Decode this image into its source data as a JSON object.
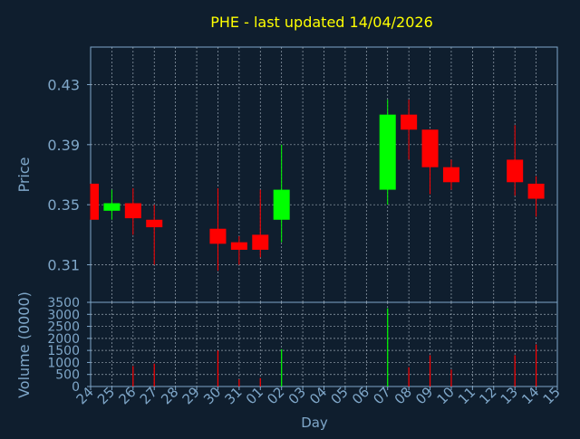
{
  "colors": {
    "background": "#0f1e2e",
    "axis": "#7fa7c9",
    "grid": "#c8d4e0",
    "title": "#ffff00",
    "up": "#00ff00",
    "down": "#ff0000"
  },
  "chart_data": {
    "type": "candlestick",
    "title": "PHE - last updated 14/04/2026",
    "xlabel": "Day",
    "grid": true,
    "categories": [
      "24",
      "25",
      "26",
      "27",
      "28",
      "29",
      "30",
      "31",
      "01",
      "02",
      "03",
      "04",
      "05",
      "06",
      "07",
      "08",
      "09",
      "10",
      "11",
      "12",
      "13",
      "14",
      "15"
    ],
    "price": {
      "ylabel": "Price",
      "ylim": [
        0.285,
        0.455
      ],
      "ticks": [
        "0.31",
        "0.35",
        "0.39",
        "0.43"
      ],
      "tick_values": [
        0.31,
        0.35,
        0.39,
        0.43
      ],
      "candles": [
        {
          "day": "24",
          "open": 0.364,
          "high": 0.364,
          "low": 0.34,
          "close": 0.34
        },
        {
          "day": "25",
          "open": 0.346,
          "high": 0.36,
          "low": 0.34,
          "close": 0.351
        },
        {
          "day": "26",
          "open": 0.351,
          "high": 0.361,
          "low": 0.33,
          "close": 0.341
        },
        {
          "day": "27",
          "open": 0.34,
          "high": 0.35,
          "low": 0.31,
          "close": 0.335
        },
        {
          "day": "30",
          "open": 0.334,
          "high": 0.361,
          "low": 0.306,
          "close": 0.324
        },
        {
          "day": "31",
          "open": 0.325,
          "high": 0.329,
          "low": 0.31,
          "close": 0.32
        },
        {
          "day": "01",
          "open": 0.33,
          "high": 0.36,
          "low": 0.315,
          "close": 0.32
        },
        {
          "day": "02",
          "open": 0.34,
          "high": 0.39,
          "low": 0.325,
          "close": 0.36
        },
        {
          "day": "07",
          "open": 0.36,
          "high": 0.42,
          "low": 0.35,
          "close": 0.41
        },
        {
          "day": "08",
          "open": 0.41,
          "high": 0.42,
          "low": 0.38,
          "close": 0.4
        },
        {
          "day": "09",
          "open": 0.4,
          "high": 0.4,
          "low": 0.357,
          "close": 0.375
        },
        {
          "day": "10",
          "open": 0.375,
          "high": 0.38,
          "low": 0.36,
          "close": 0.365
        },
        {
          "day": "13",
          "open": 0.38,
          "high": 0.403,
          "low": 0.356,
          "close": 0.365
        },
        {
          "day": "14",
          "open": 0.364,
          "high": 0.369,
          "low": 0.342,
          "close": 0.354
        }
      ]
    },
    "volume": {
      "ylabel": "Volume (0000)",
      "ylim": [
        0,
        3500
      ],
      "ticks": [
        "0",
        "500",
        "1000",
        "1500",
        "2000",
        "2500",
        "3000",
        "3500"
      ],
      "tick_values": [
        0,
        500,
        1000,
        1500,
        2000,
        2500,
        3000,
        3500
      ],
      "bars": [
        {
          "day": "24",
          "value": 0,
          "direction": "down"
        },
        {
          "day": "25",
          "value": 0,
          "direction": "up"
        },
        {
          "day": "26",
          "value": 850,
          "direction": "down"
        },
        {
          "day": "27",
          "value": 950,
          "direction": "down"
        },
        {
          "day": "30",
          "value": 1500,
          "direction": "down"
        },
        {
          "day": "31",
          "value": 300,
          "direction": "down"
        },
        {
          "day": "01",
          "value": 350,
          "direction": "down"
        },
        {
          "day": "02",
          "value": 1550,
          "direction": "up"
        },
        {
          "day": "07",
          "value": 3250,
          "direction": "up"
        },
        {
          "day": "08",
          "value": 800,
          "direction": "down"
        },
        {
          "day": "09",
          "value": 1300,
          "direction": "down"
        },
        {
          "day": "10",
          "value": 700,
          "direction": "down"
        },
        {
          "day": "13",
          "value": 1300,
          "direction": "down"
        },
        {
          "day": "14",
          "value": 1750,
          "direction": "down"
        }
      ]
    }
  }
}
